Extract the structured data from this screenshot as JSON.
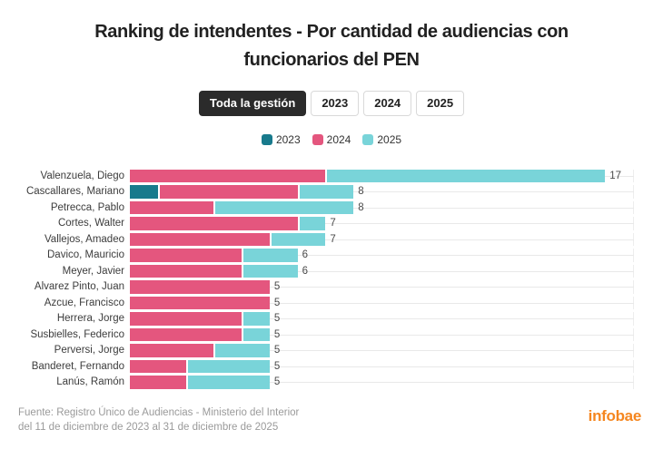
{
  "header": {
    "title_lines": [
      "Ranking de intendentes - Por cantidad de audiencias con",
      "funcionarios del PEN"
    ]
  },
  "tabs": {
    "items": [
      {
        "label": "Toda la gestión",
        "active": true
      },
      {
        "label": "2023",
        "active": false
      },
      {
        "label": "2024",
        "active": false
      },
      {
        "label": "2025",
        "active": false
      }
    ],
    "active_bg": "#2b2b2b",
    "active_text": "#ffffff"
  },
  "legend": {
    "items": [
      {
        "label": "2023",
        "color": "#187a8c"
      },
      {
        "label": "2024",
        "color": "#e4567e"
      },
      {
        "label": "2025",
        "color": "#79d4d9"
      }
    ]
  },
  "chart_data": {
    "type": "bar",
    "orientation": "horizontal",
    "stacked": true,
    "title": "Ranking de intendentes - Por cantidad de audiencias con funcionarios del PEN",
    "categories": [
      "Valenzuela, Diego",
      "Cascallares, Mariano",
      "Petrecca, Pablo",
      "Cortes, Walter",
      "Vallejos, Amadeo",
      "Davico, Mauricio",
      "Meyer, Javier",
      "Alvarez Pinto, Juan",
      "Azcue, Francisco",
      "Herrera, Jorge",
      "Susbielles, Federico",
      "Perversi, Jorge",
      "Banderet, Fernando",
      "Lanús, Ramón"
    ],
    "series": [
      {
        "name": "2023",
        "color": "#187a8c",
        "values": [
          0,
          1,
          0,
          0,
          0,
          0,
          0,
          0,
          0,
          0,
          0,
          0,
          0,
          0
        ]
      },
      {
        "name": "2024",
        "color": "#e4567e",
        "values": [
          7,
          5,
          3,
          6,
          5,
          4,
          4,
          5,
          5,
          4,
          4,
          3,
          2,
          2
        ]
      },
      {
        "name": "2025",
        "color": "#79d4d9",
        "values": [
          10,
          2,
          5,
          1,
          2,
          2,
          2,
          0,
          0,
          1,
          1,
          2,
          3,
          3
        ]
      }
    ],
    "totals": [
      17,
      8,
      8,
      7,
      7,
      6,
      6,
      5,
      5,
      5,
      5,
      5,
      5,
      5
    ],
    "xlim": [
      0,
      18
    ],
    "grid": "row-lines",
    "legend_position": "top",
    "value_labels": "end-of-bar"
  },
  "footer": {
    "source_line1": "Fuente: Registro Único de Audiencias - Ministerio del Interior",
    "source_line2": "del 11 de diciembre de 2023 al 31 de diciembre de 2025",
    "brand": "infobae",
    "brand_color": "#f5861f"
  }
}
